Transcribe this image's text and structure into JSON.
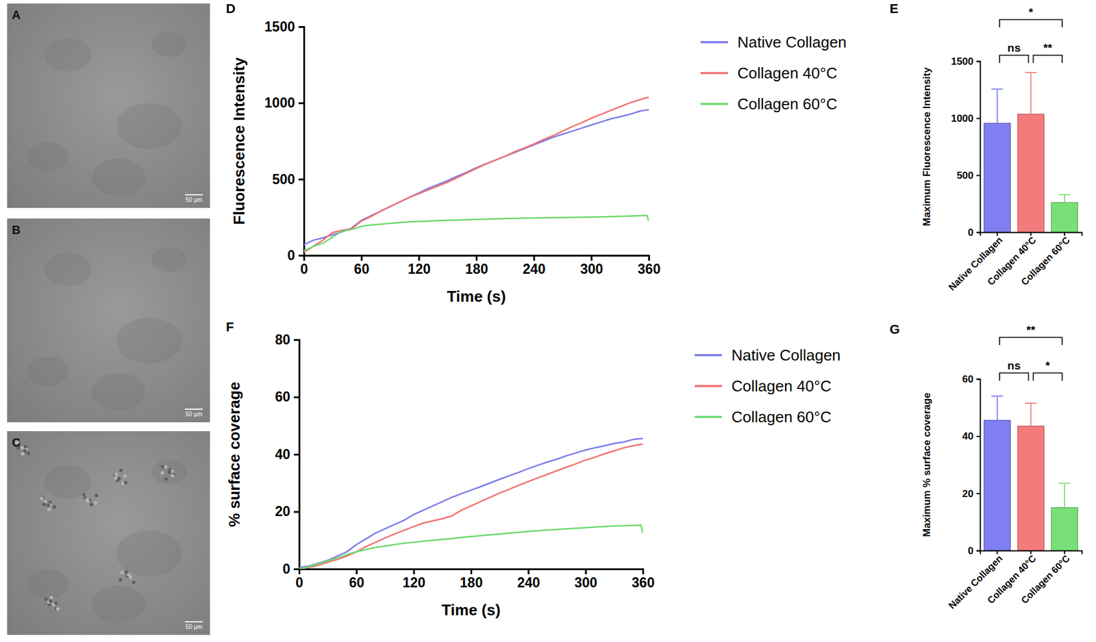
{
  "images": [
    {
      "label": "A",
      "scale_bar": "50 µm"
    },
    {
      "label": "B",
      "scale_bar": "50 µm"
    },
    {
      "label": "C",
      "scale_bar": "50 µm"
    }
  ],
  "chart_data": [
    {
      "type": "line",
      "panel_label": "D",
      "xlabel": "Time (s)",
      "ylabel": "Fluorescence Intensity",
      "x": [
        0,
        10,
        20,
        30,
        40,
        50,
        60,
        70,
        80,
        90,
        100,
        110,
        120,
        130,
        140,
        150,
        160,
        170,
        180,
        190,
        200,
        210,
        220,
        230,
        240,
        250,
        260,
        270,
        280,
        290,
        300,
        310,
        320,
        330,
        340,
        350,
        358,
        360
      ],
      "xlim": [
        0,
        360
      ],
      "xticks": [
        0,
        60,
        120,
        180,
        240,
        300,
        360
      ],
      "ylim": [
        0,
        1500
      ],
      "yticks": [
        0,
        500,
        1000,
        1500
      ],
      "legend": "right",
      "series": [
        {
          "name": "Native Collagen",
          "color": "#7b7bea",
          "values": [
            70,
            100,
            115,
            135,
            155,
            180,
            230,
            260,
            290,
            320,
            350,
            380,
            410,
            440,
            465,
            490,
            520,
            545,
            575,
            600,
            625,
            650,
            675,
            700,
            725,
            750,
            775,
            795,
            815,
            835,
            855,
            875,
            895,
            910,
            925,
            945,
            955,
            955
          ]
        },
        {
          "name": "Collagen 40°C",
          "color": "#f07272",
          "values": [
            20,
            60,
            100,
            150,
            165,
            175,
            225,
            255,
            290,
            320,
            350,
            380,
            405,
            430,
            455,
            480,
            510,
            540,
            570,
            600,
            625,
            650,
            680,
            705,
            730,
            760,
            785,
            815,
            845,
            870,
            900,
            925,
            950,
            975,
            1000,
            1020,
            1035,
            1035
          ]
        },
        {
          "name": "Collagen 60°C",
          "color": "#6dd96d",
          "values": [
            30,
            60,
            80,
            120,
            160,
            170,
            190,
            200,
            205,
            210,
            215,
            220,
            222,
            225,
            228,
            230,
            232,
            234,
            236,
            238,
            240,
            242,
            243,
            244,
            245,
            246,
            247,
            248,
            249,
            250,
            251,
            252,
            254,
            256,
            258,
            260,
            262,
            225
          ]
        }
      ]
    },
    {
      "type": "bar",
      "panel_label": "E",
      "ylabel": "Maximum Fluorescence Intensity",
      "categories": [
        "Native Collagen",
        "Collagen 40°C",
        "Collagen 60°C"
      ],
      "values": [
        955,
        1035,
        260
      ],
      "errors": [
        300,
        365,
        70
      ],
      "colors": [
        "#7f7ff2",
        "#f47b7b",
        "#79e079"
      ],
      "ylim": [
        0,
        1500
      ],
      "yticks": [
        0,
        500,
        1000,
        1500
      ],
      "significance": [
        {
          "groups": [
            "Native Collagen",
            "Collagen 40°C"
          ],
          "label": "ns"
        },
        {
          "groups": [
            "Collagen 40°C",
            "Collagen 60°C"
          ],
          "label": "**"
        },
        {
          "groups": [
            "Native Collagen",
            "Collagen 60°C"
          ],
          "label": "*"
        }
      ]
    },
    {
      "type": "line",
      "panel_label": "F",
      "xlabel": "Time (s)",
      "ylabel": "% surface coverage",
      "x": [
        0,
        10,
        20,
        30,
        40,
        50,
        60,
        70,
        80,
        90,
        100,
        110,
        120,
        130,
        140,
        150,
        160,
        170,
        180,
        190,
        200,
        210,
        220,
        230,
        240,
        250,
        260,
        270,
        280,
        290,
        300,
        310,
        320,
        330,
        340,
        350,
        358,
        360
      ],
      "xlim": [
        0,
        360
      ],
      "xticks": [
        0,
        60,
        120,
        180,
        240,
        300,
        360
      ],
      "ylim": [
        0,
        80
      ],
      "yticks": [
        0,
        20,
        40,
        60,
        80
      ],
      "legend": "right",
      "series": [
        {
          "name": "Native Collagen",
          "color": "#7b7bea",
          "values": [
            0.5,
            1,
            2,
            3,
            4.5,
            6,
            8.5,
            10.5,
            12.5,
            14,
            15.5,
            17,
            19,
            20.5,
            22,
            23.5,
            25,
            26.3,
            27.5,
            28.7,
            30,
            31.3,
            32.5,
            33.7,
            35,
            36.2,
            37.3,
            38.3,
            39.5,
            40.5,
            41.5,
            42.3,
            43,
            43.8,
            44.3,
            45.2,
            45.5,
            45.5
          ]
        },
        {
          "name": "Collagen 40°C",
          "color": "#f07272",
          "values": [
            0,
            0.5,
            1.3,
            2.3,
            3.3,
            4.5,
            6,
            7.8,
            9.3,
            10.8,
            12.2,
            13.5,
            14.8,
            16,
            16.8,
            17.5,
            18.5,
            20.5,
            22,
            23.5,
            25,
            26.5,
            27.8,
            29.2,
            30.5,
            31.8,
            33,
            34.3,
            35.5,
            36.7,
            38,
            39,
            40.2,
            41.2,
            42.3,
            43,
            43.5,
            43.5
          ]
        },
        {
          "name": "Collagen 60°C",
          "color": "#6dd96d",
          "values": [
            0,
            0.8,
            1.8,
            2.8,
            3.8,
            5,
            6,
            6.8,
            7.5,
            8,
            8.5,
            9,
            9.3,
            9.7,
            10,
            10.3,
            10.6,
            11,
            11.3,
            11.6,
            11.9,
            12.2,
            12.5,
            12.8,
            13.1,
            13.3,
            13.6,
            13.8,
            14,
            14.2,
            14.4,
            14.6,
            14.8,
            15,
            15.1,
            15.2,
            15.3,
            12.5
          ]
        }
      ]
    },
    {
      "type": "bar",
      "panel_label": "G",
      "ylabel": "Maximum % surface coverage",
      "categories": [
        "Native Collagen",
        "Collagen 40°C",
        "Collagen 60°C"
      ],
      "values": [
        45.5,
        43.5,
        15
      ],
      "errors": [
        8.5,
        8,
        8.5
      ],
      "colors": [
        "#7f7ff2",
        "#f47b7b",
        "#79e079"
      ],
      "ylim": [
        0,
        60
      ],
      "yticks": [
        0,
        20,
        40,
        60
      ],
      "significance": [
        {
          "groups": [
            "Native Collagen",
            "Collagen 40°C"
          ],
          "label": "ns"
        },
        {
          "groups": [
            "Collagen 40°C",
            "Collagen 60°C"
          ],
          "label": "*"
        },
        {
          "groups": [
            "Native Collagen",
            "Collagen 60°C"
          ],
          "label": "**"
        }
      ]
    }
  ]
}
